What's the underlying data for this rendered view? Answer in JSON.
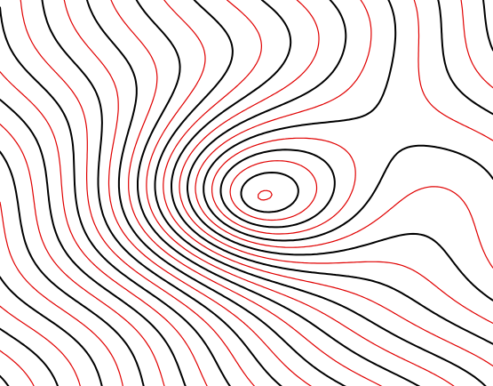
{
  "chart_data": {
    "type": "contour",
    "colors": [
      "#000000",
      "#e00000"
    ]
  }
}
